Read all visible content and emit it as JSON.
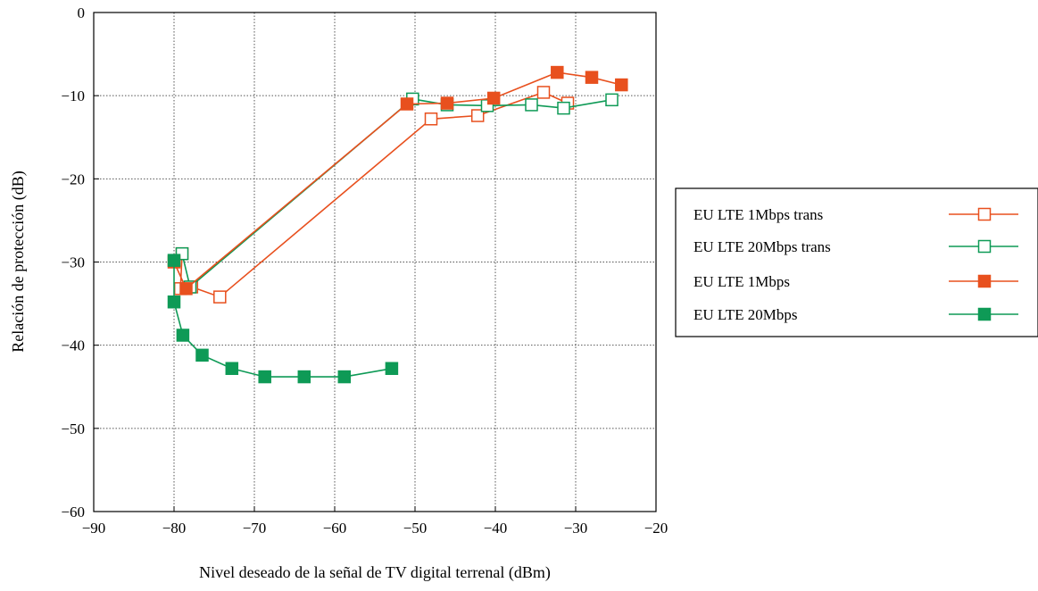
{
  "chart_data": {
    "type": "line",
    "title": "",
    "xlabel": "Nivel deseado de la señal de TV digital terrenal (dBm)",
    "ylabel": "Relación de protección (dB)",
    "xlim": [
      -90,
      -20
    ],
    "ylim": [
      -60,
      0
    ],
    "xticks": [
      -90,
      -80,
      -70,
      -60,
      -50,
      -40,
      -30,
      -20
    ],
    "yticks": [
      0,
      -10,
      -20,
      -30,
      -40,
      -50,
      -60
    ],
    "xtick_labels": [
      "−90",
      "−80",
      "−70",
      "−60",
      "−50",
      "−40",
      "−30",
      "−20"
    ],
    "ytick_labels": [
      "0",
      "−10",
      "−20",
      "−30",
      "−40",
      "−50",
      "−60"
    ],
    "grid": true,
    "legend_position": "right",
    "series": [
      {
        "name": "EU LTE 1Mbps trans",
        "color": "#e8501e",
        "marker": "square-open",
        "x": [
          -79,
          -79.2,
          -77.8,
          -74.3,
          -48,
          -42.2,
          -34,
          -31
        ],
        "y": [
          -29,
          -33.2,
          -33,
          -34.2,
          -12.8,
          -12.4,
          -9.6,
          -10.9
        ]
      },
      {
        "name": "EU LTE 20Mbps trans",
        "color": "#0e9a56",
        "marker": "square-open",
        "x": [
          -79,
          -78,
          -50.3,
          -46,
          -41,
          -35.5,
          -31.5,
          -25.5
        ],
        "y": [
          -29,
          -33,
          -10.4,
          -11.1,
          -11.2,
          -11.1,
          -11.5,
          -10.5
        ]
      },
      {
        "name": "EU LTE 1Mbps",
        "color": "#e8501e",
        "marker": "square-filled",
        "x": [
          -80,
          -78.5,
          -51,
          -46,
          -40.2,
          -32.3,
          -28,
          -24.3
        ],
        "y": [
          -30,
          -33.2,
          -11,
          -10.9,
          -10.3,
          -7.2,
          -7.8,
          -8.7
        ]
      },
      {
        "name": "EU LTE 20Mbps",
        "color": "#0e9a56",
        "marker": "square-filled",
        "x": [
          -80,
          -80,
          -78.9,
          -76.5,
          -72.8,
          -68.7,
          -63.8,
          -58.8,
          -52.9
        ],
        "y": [
          -29.8,
          -34.8,
          -38.8,
          -41.2,
          -42.8,
          -43.8,
          -43.8,
          -43.8,
          -42.8
        ]
      }
    ]
  }
}
